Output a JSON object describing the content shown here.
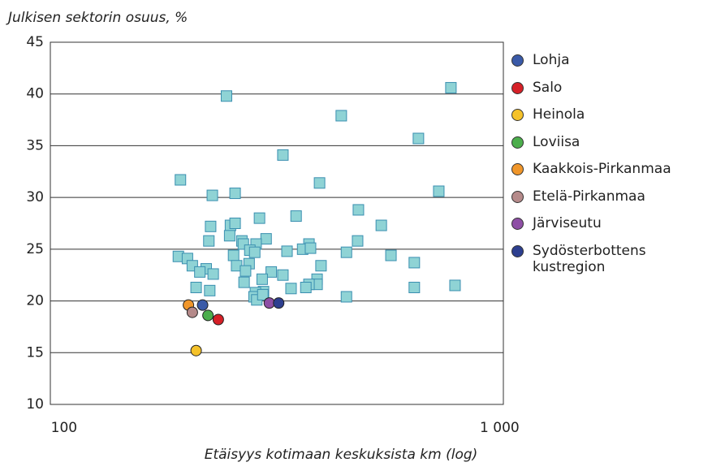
{
  "chart_data": {
    "type": "scatter",
    "title": "Julkisen sektorin osuus, %",
    "x_label": "Etäisyys kotimaan keskuksista km (log)",
    "x_log": true,
    "xlim": [
      93,
      1020
    ],
    "xticks": [
      100,
      {
        "value": 1000,
        "label": "1 000"
      }
    ],
    "ylim": [
      10,
      45
    ],
    "yticks": [
      10,
      15,
      20,
      25,
      30,
      35,
      40,
      45
    ],
    "grid": true,
    "legend": "right",
    "series": [
      {
        "color": "#8fd3d5",
        "marker": "square",
        "x": [
          236,
          773,
          433,
          651,
          318,
          185,
          386,
          725,
          219,
          247,
          474,
          341,
          281,
          217,
          241,
          247,
          535,
          240,
          256,
          215,
          291,
          258,
          472,
          276,
          365,
          353,
          325,
          267,
          274,
          368,
          445,
          563,
          183,
          192,
          245,
          637,
          197,
          389,
          249,
          266,
          212,
          205,
          261,
          299,
          220,
          318,
          285,
          381,
          259,
          381,
          365,
          359,
          201,
          332,
          790,
          637,
          216,
          287,
          275,
          273,
          445,
          277,
          286
        ],
        "values": [
          39.8,
          40.6,
          37.9,
          35.7,
          34.1,
          31.7,
          31.4,
          30.6,
          30.2,
          30.4,
          28.8,
          28.2,
          28.0,
          27.2,
          27.3,
          27.5,
          27.3,
          26.3,
          25.8,
          25.8,
          26.0,
          25.5,
          25.8,
          25.5,
          25.5,
          25.0,
          24.8,
          24.9,
          24.7,
          25.1,
          24.7,
          24.4,
          24.3,
          24.1,
          24.4,
          23.7,
          23.4,
          23.4,
          23.4,
          23.6,
          23.1,
          22.8,
          22.9,
          22.8,
          22.6,
          22.5,
          22.1,
          22.1,
          21.8,
          21.6,
          21.6,
          21.3,
          21.3,
          21.2,
          21.5,
          21.3,
          21.0,
          20.9,
          20.8,
          20.4,
          20.4,
          20.1,
          20.6
        ]
      },
      {
        "name": "Lohja",
        "color": "#3a5aa8",
        "marker": "circle",
        "x": [
          208
        ],
        "values": [
          19.6
        ]
      },
      {
        "name": "Salo",
        "color": "#d62027",
        "marker": "circle",
        "x": [
          226
        ],
        "values": [
          18.2
        ]
      },
      {
        "name": "Heinola",
        "color": "#f5c22a",
        "marker": "circle",
        "x": [
          201
        ],
        "values": [
          15.2
        ]
      },
      {
        "name": "Loviisa",
        "color": "#4cae4c",
        "marker": "circle",
        "x": [
          214
        ],
        "values": [
          18.6
        ]
      },
      {
        "name": "Kaakkois-Pirkanmaa",
        "color": "#f0962a",
        "marker": "circle",
        "x": [
          193
        ],
        "values": [
          19.6
        ]
      },
      {
        "name": "Etelä-Pirkanmaa",
        "color": "#b58a8a",
        "marker": "circle",
        "x": [
          197
        ],
        "values": [
          18.9
        ]
      },
      {
        "name": "Järviseutu",
        "color": "#8e4fa5",
        "marker": "circle",
        "x": [
          296
        ],
        "values": [
          19.8
        ]
      },
      {
        "name": "Sydösterbottens kustregion",
        "color": "#2d3f8f",
        "marker": "circle",
        "x": [
          311
        ],
        "values": [
          19.8
        ]
      }
    ]
  }
}
